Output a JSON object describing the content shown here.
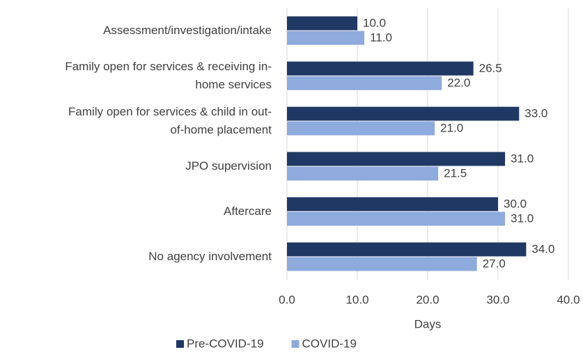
{
  "chart_data": {
    "type": "bar",
    "orientation": "horizontal",
    "categories": [
      [
        "Assessment/investigation/intake"
      ],
      [
        "Family open for services & receiving in-",
        "home services"
      ],
      [
        "Family open for services & child in out-",
        "of-home placement"
      ],
      [
        "JPO supervision"
      ],
      [
        "Aftercare"
      ],
      [
        "No agency involvement"
      ]
    ],
    "series": [
      {
        "name": "Pre-COVID-19",
        "color": "#203864",
        "values": [
          10,
          26.5,
          33,
          31,
          30,
          34
        ],
        "value_labels": [
          "10.0",
          "26.5",
          "33.0",
          "31.0",
          "30.0",
          "34.0"
        ]
      },
      {
        "name": "COVID-19",
        "color": "#8faadc",
        "values": [
          11,
          22,
          21,
          21.5,
          31,
          27
        ],
        "value_labels": [
          "11.0",
          "22.0",
          "21.0",
          "21.5",
          "31.0",
          "27.0"
        ]
      }
    ],
    "xlabel": "Days",
    "xlim": [
      0,
      40
    ],
    "xticks": [
      {
        "value": 0,
        "label": "0.0"
      },
      {
        "value": 10,
        "label": "10.0"
      },
      {
        "value": 20,
        "label": "20.0"
      },
      {
        "value": 30,
        "label": "30.0"
      },
      {
        "value": 40,
        "label": "40.0"
      }
    ],
    "grid": true,
    "legend": "bottom"
  }
}
